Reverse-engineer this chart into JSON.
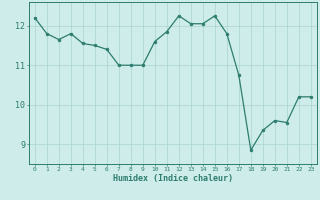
{
  "x": [
    0,
    1,
    2,
    3,
    4,
    5,
    6,
    7,
    8,
    9,
    10,
    11,
    12,
    13,
    14,
    15,
    16,
    17,
    18,
    19,
    20,
    21,
    22,
    23
  ],
  "y": [
    12.2,
    11.8,
    11.65,
    11.8,
    11.55,
    11.5,
    11.4,
    11.0,
    11.0,
    11.0,
    11.6,
    11.85,
    12.25,
    12.05,
    12.05,
    12.25,
    11.8,
    10.75,
    8.85,
    9.35,
    9.6,
    9.55,
    10.2,
    10.2
  ],
  "title": "",
  "xlabel": "Humidex (Indice chaleur)",
  "ylabel": "",
  "xlim": [
    -0.5,
    23.5
  ],
  "ylim": [
    8.5,
    12.6
  ],
  "yticks": [
    9,
    10,
    11,
    12
  ],
  "xticks": [
    0,
    1,
    2,
    3,
    4,
    5,
    6,
    7,
    8,
    9,
    10,
    11,
    12,
    13,
    14,
    15,
    16,
    17,
    18,
    19,
    20,
    21,
    22,
    23
  ],
  "line_color": "#2d7d6e",
  "marker_color": "#2d7d6e",
  "bg_color": "#ceecea",
  "grid_color": "#b0d8d3",
  "axis_color": "#2d7d6e",
  "tick_color": "#2d7d6e",
  "label_color": "#2d7d6e"
}
